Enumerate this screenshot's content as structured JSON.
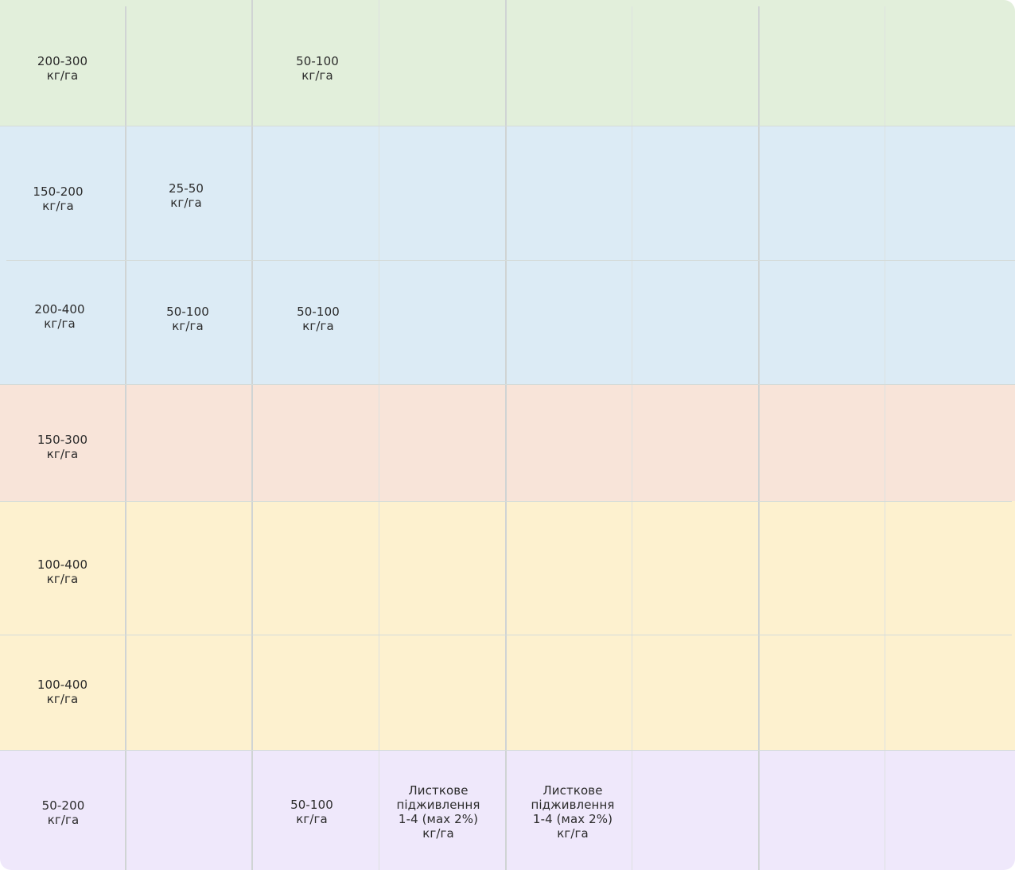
{
  "colors": {
    "green": "#e2efdb",
    "blue": "#dcebf5",
    "peach": "#f8e4d9",
    "yellow": "#fdf1cf",
    "lavender": "#efe8fb",
    "grid_line": "#d4dbd9"
  },
  "rows": [
    {
      "band": "green",
      "cells": [
        {
          "col": 0,
          "value": "200-300",
          "unit": "кг/га"
        },
        {
          "col": 2,
          "value": "50-100",
          "unit": "кг/га"
        }
      ]
    },
    {
      "band": "blue",
      "cells": [
        {
          "col": 0,
          "value": "150-200",
          "unit": "кг/га"
        },
        {
          "col": 1,
          "value": "25-50",
          "unit": "кг/га"
        }
      ]
    },
    {
      "band": "blue",
      "cells": [
        {
          "col": 0,
          "value": "200-400",
          "unit": "кг/га"
        },
        {
          "col": 1,
          "value": "50-100",
          "unit": "кг/га"
        },
        {
          "col": 2,
          "value": "50-100",
          "unit": "кг/га"
        }
      ]
    },
    {
      "band": "peach",
      "cells": [
        {
          "col": 0,
          "value": "150-300",
          "unit": "кг/га"
        }
      ]
    },
    {
      "band": "yellow",
      "cells": [
        {
          "col": 0,
          "value": "100-400",
          "unit": "кг/га"
        }
      ]
    },
    {
      "band": "yellow",
      "cells": [
        {
          "col": 0,
          "value": "100-400",
          "unit": "кг/га"
        }
      ]
    },
    {
      "band": "lavender",
      "cells": [
        {
          "col": 0,
          "value": "50-200",
          "unit": "кг/га"
        },
        {
          "col": 2,
          "value": "50-100",
          "unit": "кг/га"
        },
        {
          "col": 3,
          "value": "Листкове",
          "line2": "підживлення",
          "line3": "1-4 (мах 2%)",
          "unit": "кг/га"
        },
        {
          "col": 4,
          "value": "Листкове",
          "line2": "підживлення",
          "line3": "1-4 (мах 2%)",
          "unit": "кг/га"
        }
      ]
    }
  ]
}
